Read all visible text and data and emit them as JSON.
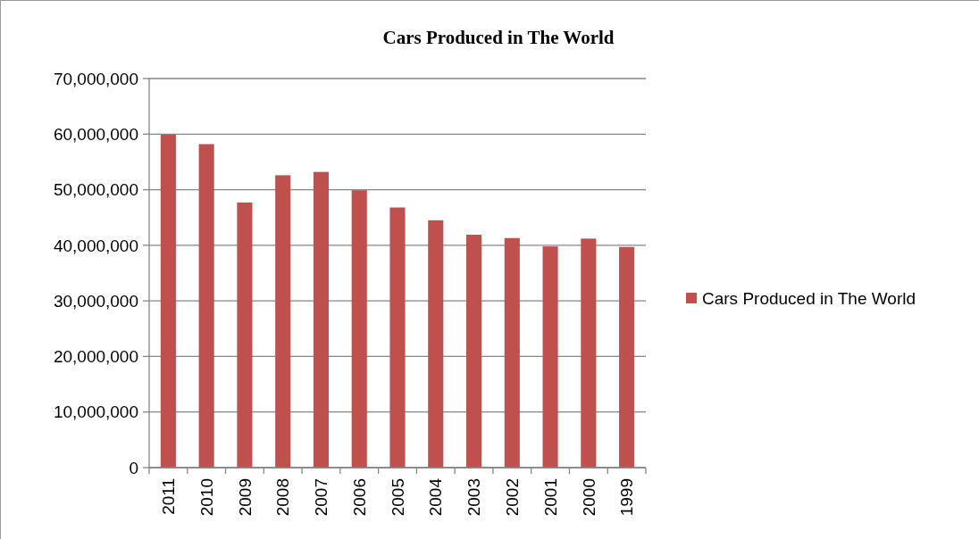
{
  "chart_data": {
    "type": "bar",
    "title": "Cars Produced in The World",
    "categories": [
      "2011",
      "2010",
      "2009",
      "2008",
      "2007",
      "2006",
      "2005",
      "2004",
      "2003",
      "2002",
      "2001",
      "2000",
      "1999"
    ],
    "series": [
      {
        "name": "Cars Produced in The World",
        "color": "#c0504d",
        "values": [
          59900000,
          58200000,
          47700000,
          52600000,
          53200000,
          49900000,
          46800000,
          44500000,
          41900000,
          41300000,
          39800000,
          41200000,
          39700000
        ]
      }
    ],
    "ylim": [
      0,
      70000000
    ],
    "yticks": [
      {
        "value": 0,
        "label": "0"
      },
      {
        "value": 10000000,
        "label": "10,000,000"
      },
      {
        "value": 20000000,
        "label": "20,000,000"
      },
      {
        "value": 30000000,
        "label": "30,000,000"
      },
      {
        "value": 40000000,
        "label": "40,000,000"
      },
      {
        "value": 50000000,
        "label": "50,000,000"
      },
      {
        "value": 60000000,
        "label": "60,000,000"
      },
      {
        "value": 70000000,
        "label": "70,000,000"
      }
    ],
    "grid": "y",
    "legend": "right"
  }
}
